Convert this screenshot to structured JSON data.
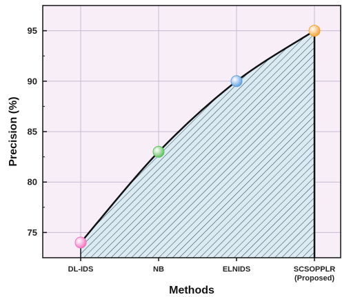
{
  "chart_data": {
    "type": "area",
    "categories": [
      "DL-IDS",
      "NB",
      "ELNIDS",
      "SCSOPPLR"
    ],
    "category_sublabels": [
      "",
      "",
      "",
      "(Proposed)"
    ],
    "series": [
      {
        "values": [
          74,
          83,
          90,
          95
        ]
      }
    ],
    "xlabel": "Methods",
    "ylabel": "Precision (%)",
    "ylim": [
      72.5,
      97.5
    ],
    "yticks": [
      "75",
      "80",
      "85",
      "90",
      "95"
    ],
    "grid": true,
    "colors": {
      "plot_background": "#f7eef7",
      "grid": "#c8b8d0",
      "line": "#111111",
      "fill": "#dcebf2",
      "hatch": "#1f3b4d",
      "markers": [
        "#f06fc0",
        "#5cc05c",
        "#5b9ee0",
        "#f7a030"
      ]
    }
  }
}
